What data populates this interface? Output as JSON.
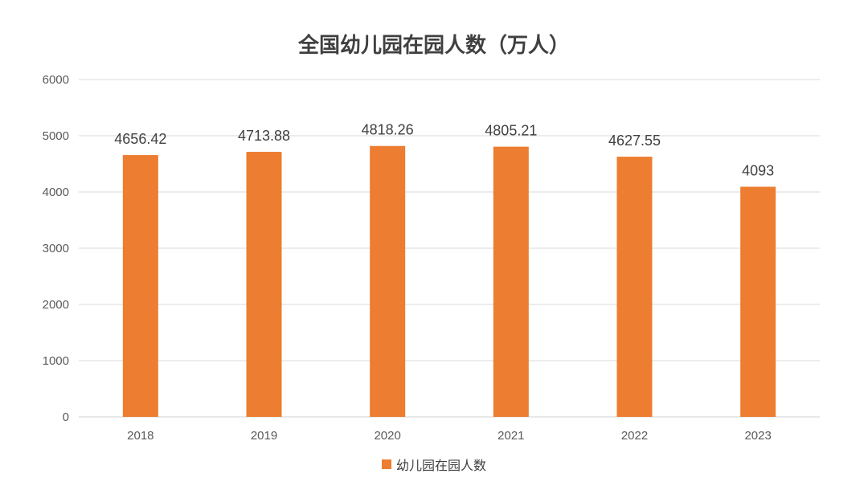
{
  "chart_data": {
    "type": "bar",
    "title": "全国幼儿园在园人数（万人）",
    "categories": [
      "2018",
      "2019",
      "2020",
      "2021",
      "2022",
      "2023"
    ],
    "series": [
      {
        "name": "幼儿园在园人数",
        "values": [
          4656.42,
          4713.88,
          4818.26,
          4805.21,
          4627.55,
          4093
        ],
        "labels": [
          "4656.42",
          "4713.88",
          "4818.26",
          "4805.21",
          "4627.55",
          "4093"
        ]
      }
    ],
    "ylim": [
      0,
      6000
    ],
    "yticks": [
      0,
      1000,
      2000,
      3000,
      4000,
      5000,
      6000
    ],
    "grid": true,
    "legend": "bottom",
    "colors": {
      "bar": "#ED7D31",
      "grid": "#D9D9D9",
      "tick_text": "#595959",
      "label_text": "#404040"
    }
  }
}
